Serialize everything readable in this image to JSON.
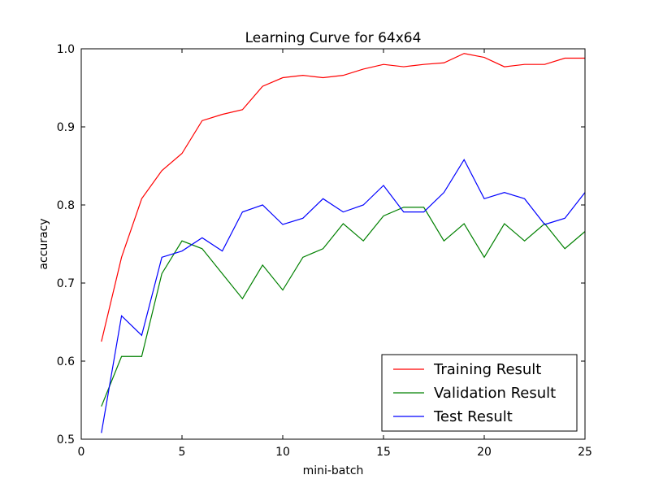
{
  "chart_data": {
    "type": "line",
    "title": "Learning Curve for 64x64",
    "xlabel": "mini-batch",
    "ylabel": "accuracy",
    "xlim": [
      0,
      25
    ],
    "ylim": [
      0.5,
      1.0
    ],
    "xticks": [
      0,
      5,
      10,
      15,
      20,
      25
    ],
    "yticks": [
      0.5,
      0.6,
      0.7,
      0.8,
      0.9,
      1.0
    ],
    "xtick_labels": [
      "0",
      "5",
      "10",
      "15",
      "20",
      "25"
    ],
    "ytick_labels": [
      "0.5",
      "0.6",
      "0.7",
      "0.8",
      "0.9",
      "1.0"
    ],
    "grid": false,
    "legend_position": "lower-right",
    "x": [
      1,
      2,
      3,
      4,
      5,
      6,
      7,
      8,
      9,
      10,
      11,
      12,
      13,
      14,
      15,
      16,
      17,
      18,
      19,
      20,
      21,
      22,
      23,
      24,
      25
    ],
    "series": [
      {
        "name": "Training Result",
        "color": "#ff0000",
        "values": [
          0.625,
          0.733,
          0.808,
          0.844,
          0.866,
          0.908,
          0.916,
          0.922,
          0.952,
          0.963,
          0.966,
          0.963,
          0.966,
          0.974,
          0.98,
          0.977,
          0.98,
          0.982,
          0.994,
          0.989,
          0.977,
          0.98,
          0.98,
          0.988,
          0.988
        ]
      },
      {
        "name": "Validation Result",
        "color": "#008000",
        "values": [
          0.542,
          0.606,
          0.606,
          0.712,
          0.754,
          0.744,
          0.712,
          0.68,
          0.723,
          0.691,
          0.733,
          0.744,
          0.776,
          0.754,
          0.786,
          0.797,
          0.797,
          0.754,
          0.776,
          0.733,
          0.776,
          0.754,
          0.776,
          0.744,
          0.766
        ]
      },
      {
        "name": "Test Result",
        "color": "#0000ff",
        "values": [
          0.508,
          0.658,
          0.633,
          0.733,
          0.741,
          0.758,
          0.741,
          0.791,
          0.8,
          0.775,
          0.783,
          0.808,
          0.791,
          0.8,
          0.825,
          0.791,
          0.791,
          0.816,
          0.858,
          0.808,
          0.816,
          0.808,
          0.775,
          0.783,
          0.816
        ]
      }
    ]
  }
}
